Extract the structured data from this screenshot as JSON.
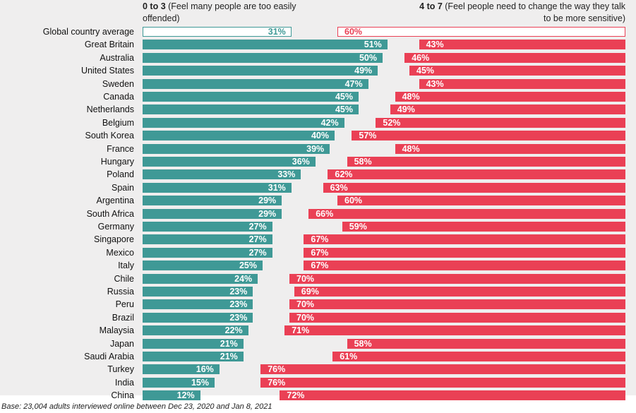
{
  "chart_data": {
    "type": "bar",
    "orientation": "horizontal-diverging",
    "header_left": {
      "bold": "0 to 3",
      "text": " (Feel many people are too easily offended)"
    },
    "header_right": {
      "bold": "4 to 7",
      "text": " (Feel people need to change the way they talk to be more sensitive)"
    },
    "footer": "Base: 23,004 adults interviewed online between Dec 23, 2020 and Jan 8, 2021",
    "colors": {
      "left": "#3f9996",
      "right": "#ea4055",
      "background": "#efeeee"
    },
    "xlim": [
      0,
      100
    ],
    "categories": [
      "Global country average",
      "Great Britain",
      "Australia",
      "United States",
      "Sweden",
      "Canada",
      "Netherlands",
      "Belgium",
      "South Korea",
      "France",
      "Hungary",
      "Poland",
      "Spain",
      "Argentina",
      "South Africa",
      "Germany",
      "Singapore",
      "Mexico",
      "Italy",
      "Chile",
      "Russia",
      "Peru",
      "Brazil",
      "Malaysia",
      "Japan",
      "Saudi Arabia",
      "Turkey",
      "India",
      "China"
    ],
    "series": [
      {
        "values": [
          31,
          51,
          50,
          49,
          47,
          45,
          45,
          42,
          40,
          39,
          36,
          33,
          31,
          29,
          29,
          27,
          27,
          27,
          25,
          24,
          23,
          23,
          23,
          22,
          21,
          21,
          16,
          15,
          12
        ]
      },
      {
        "values": [
          60,
          43,
          46,
          45,
          43,
          48,
          49,
          52,
          57,
          48,
          58,
          62,
          63,
          60,
          66,
          59,
          67,
          67,
          67,
          70,
          69,
          70,
          70,
          71,
          58,
          61,
          76,
          76,
          72
        ]
      }
    ],
    "value_labels": {
      "left": [
        "31%",
        "51%",
        "50%",
        "49%",
        "47%",
        "45%",
        "45%",
        "42%",
        "40%",
        "39%",
        "36%",
        "33%",
        "31%",
        "29%",
        "29%",
        "27%",
        "27%",
        "27%",
        "25%",
        "24%",
        "23%",
        "23%",
        "23%",
        "22%",
        "21%",
        "21%",
        "16%",
        "15%",
        "12%"
      ],
      "right": [
        "60%",
        "43%",
        "46%",
        "45%",
        "43%",
        "48%",
        "49%",
        "52%",
        "57%",
        "48%",
        "58%",
        "62%",
        "63%",
        "60%",
        "66%",
        "59%",
        "67%",
        "67%",
        "67%",
        "70%",
        "69%",
        "70%",
        "70%",
        "71%",
        "58%",
        "61%",
        "76%",
        "76%",
        "72%"
      ]
    }
  }
}
